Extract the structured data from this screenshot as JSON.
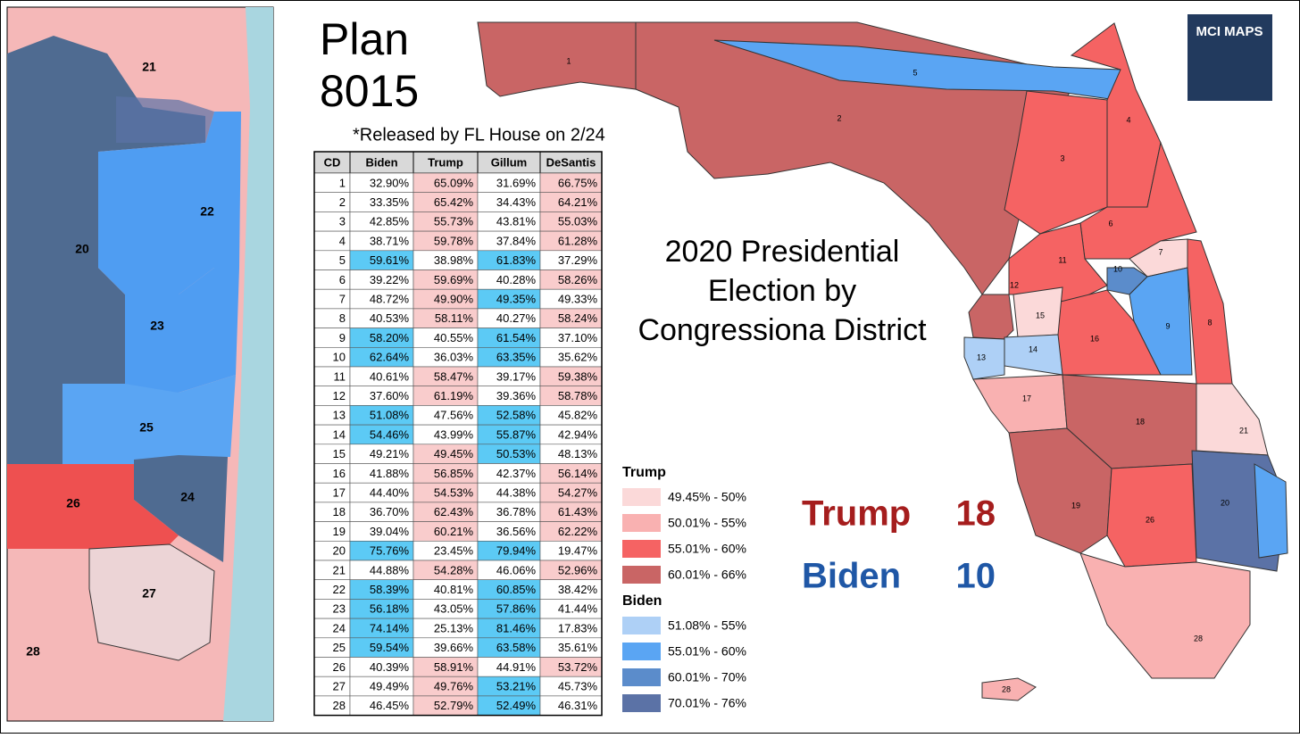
{
  "title_lines": [
    "Plan",
    "8015"
  ],
  "note": "*Released by FL House on 2/24",
  "table": {
    "header": [
      "CD",
      "Biden",
      "Trump",
      "Gillum",
      "DeSantis"
    ],
    "highlight": {
      "republican": "#f9cccc",
      "democrat": "#5ccaf5"
    },
    "rows": [
      [
        "1",
        "32.90%",
        "65.09%",
        "31.69%",
        "66.75%"
      ],
      [
        "2",
        "33.35%",
        "65.42%",
        "34.43%",
        "64.21%"
      ],
      [
        "3",
        "42.85%",
        "55.73%",
        "43.81%",
        "55.03%"
      ],
      [
        "4",
        "38.71%",
        "59.78%",
        "37.84%",
        "61.28%"
      ],
      [
        "5",
        "59.61%",
        "38.98%",
        "61.83%",
        "37.29%"
      ],
      [
        "6",
        "39.22%",
        "59.69%",
        "40.28%",
        "58.26%"
      ],
      [
        "7",
        "48.72%",
        "49.90%",
        "49.35%",
        "49.33%"
      ],
      [
        "8",
        "40.53%",
        "58.11%",
        "40.27%",
        "58.24%"
      ],
      [
        "9",
        "58.20%",
        "40.55%",
        "61.54%",
        "37.10%"
      ],
      [
        "10",
        "62.64%",
        "36.03%",
        "63.35%",
        "35.62%"
      ],
      [
        "11",
        "40.61%",
        "58.47%",
        "39.17%",
        "59.38%"
      ],
      [
        "12",
        "37.60%",
        "61.19%",
        "39.36%",
        "58.78%"
      ],
      [
        "13",
        "51.08%",
        "47.56%",
        "52.58%",
        "45.82%"
      ],
      [
        "14",
        "54.46%",
        "43.99%",
        "55.87%",
        "42.94%"
      ],
      [
        "15",
        "49.21%",
        "49.45%",
        "50.53%",
        "48.13%"
      ],
      [
        "16",
        "41.88%",
        "56.85%",
        "42.37%",
        "56.14%"
      ],
      [
        "17",
        "44.40%",
        "54.53%",
        "44.38%",
        "54.27%"
      ],
      [
        "18",
        "36.70%",
        "62.43%",
        "36.78%",
        "61.43%"
      ],
      [
        "19",
        "39.04%",
        "60.21%",
        "36.56%",
        "62.22%"
      ],
      [
        "20",
        "75.76%",
        "23.45%",
        "79.94%",
        "19.47%"
      ],
      [
        "21",
        "44.88%",
        "54.28%",
        "46.06%",
        "52.96%"
      ],
      [
        "22",
        "58.39%",
        "40.81%",
        "60.85%",
        "38.42%"
      ],
      [
        "23",
        "56.18%",
        "43.05%",
        "57.86%",
        "41.44%"
      ],
      [
        "24",
        "74.14%",
        "25.13%",
        "81.46%",
        "17.83%"
      ],
      [
        "25",
        "59.54%",
        "39.66%",
        "63.58%",
        "35.61%"
      ],
      [
        "26",
        "40.39%",
        "58.91%",
        "44.91%",
        "53.72%"
      ],
      [
        "27",
        "49.49%",
        "49.76%",
        "53.21%",
        "45.73%"
      ],
      [
        "28",
        "46.45%",
        "52.79%",
        "52.49%",
        "46.31%"
      ]
    ]
  },
  "legend": [
    {
      "title": "Trump",
      "items": [
        {
          "label": "49.45% - 50%",
          "color": "#fbd9d9"
        },
        {
          "label": "50.01% - 55%",
          "color": "#f9b1b1"
        },
        {
          "label": "55.01% - 60%",
          "color": "#f56363"
        },
        {
          "label": "60.01% - 66%",
          "color": "#c96565"
        }
      ]
    },
    {
      "title": "Biden",
      "items": [
        {
          "label": "51.08% - 55%",
          "color": "#aed0f6"
        },
        {
          "label": "55.01% - 60%",
          "color": "#5aa5f3"
        },
        {
          "label": "60.01% - 70%",
          "color": "#5b8ccb"
        },
        {
          "label": "70.01% - 76%",
          "color": "#5b72a6"
        }
      ]
    }
  ],
  "headline": [
    "2020 Presidential",
    "Election by",
    "Congressiona District"
  ],
  "results": [
    {
      "party": "Trump",
      "seats": 18,
      "color": "#a51d1d"
    },
    {
      "party": "Biden",
      "seats": 10,
      "color": "#1f57a6"
    }
  ],
  "logo": "MCI MAPS",
  "map_labels": [
    "1",
    "2",
    "3",
    "4",
    "5",
    "6",
    "7",
    "8",
    "9",
    "10",
    "11",
    "12",
    "13",
    "14",
    "15",
    "16",
    "17",
    "18",
    "19",
    "20",
    "21",
    "26",
    "28",
    "28"
  ],
  "inset_labels": [
    "21",
    "22",
    "20",
    "23",
    "25",
    "26",
    "24",
    "27",
    "28"
  ]
}
